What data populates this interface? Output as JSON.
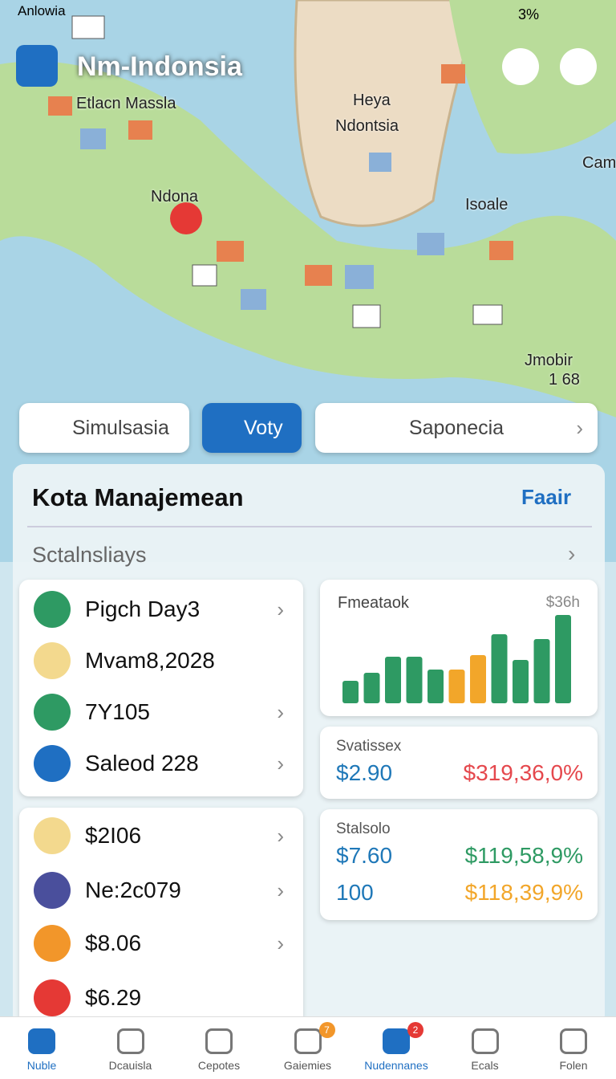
{
  "status": {
    "left": "Anlowia",
    "right": "3%"
  },
  "header": {
    "title": "Nm-Indonsia"
  },
  "map": {
    "labels": [
      "Etlacn Massla",
      "Heya",
      "Ndontsia",
      "Ndona",
      "Isoale",
      "Cam",
      "Jmobir",
      "1 68"
    ]
  },
  "tabs": [
    "Simulsasia",
    "Voty",
    "Saponecia"
  ],
  "panel": {
    "title": "Kota Manajemean",
    "link": "Faair",
    "subtitle": "Sctalnsliays"
  },
  "list1": [
    "Pigch Day3",
    "Mvam8,2028",
    "7Y105",
    "Saleod 228"
  ],
  "list2": [
    "$2I06",
    "Ne:2c079",
    "$8.06",
    "$6.29"
  ],
  "chart_data": {
    "type": "bar",
    "title": "Fmeataok",
    "label": "$36h",
    "values": [
      28,
      38,
      58,
      58,
      42,
      42,
      60,
      86,
      54,
      80,
      110
    ],
    "colors": [
      "#2e9a63",
      "#2e9a63",
      "#2e9a63",
      "#2e9a63",
      "#2e9a63",
      "#f2a62a",
      "#f2a62a",
      "#2e9a63",
      "#2e9a63",
      "#2e9a63",
      "#2e9a63"
    ]
  },
  "stats1": {
    "title": "Svatissex",
    "left": "$2.90",
    "right": "$319,36,0%"
  },
  "stats2": {
    "title": "Stalsolo",
    "rows": [
      [
        "$7.60",
        "$119,58,9%"
      ],
      [
        "100",
        "$118,39,9%"
      ]
    ]
  },
  "nav": {
    "items": [
      "Nuble",
      "Dcauisla",
      "Cepotes",
      "Gaiemies",
      "Nudennanes",
      "Ecals",
      "Folen"
    ],
    "badges": [
      "7",
      "2"
    ]
  }
}
